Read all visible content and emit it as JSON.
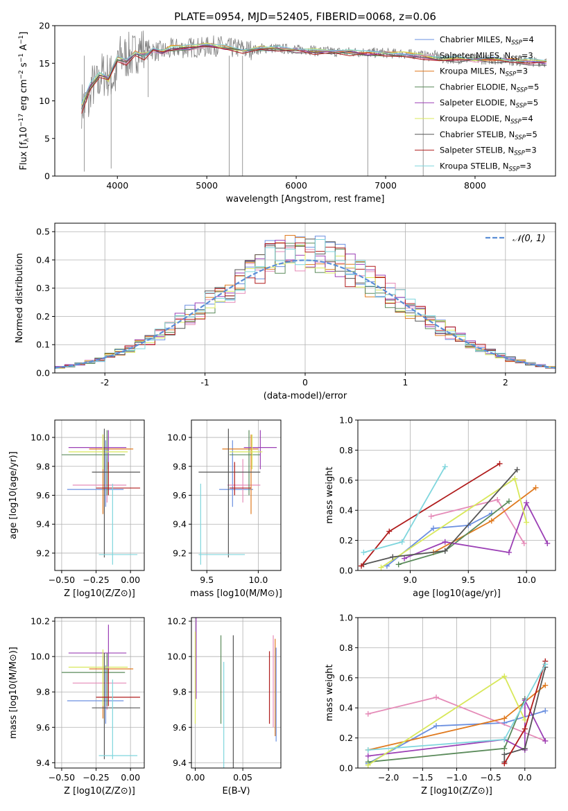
{
  "title": "PLATE=0954, MJD=52405, FIBERID=0068, z=0.06",
  "colors": {
    "Chabrier MILES": "#6a8fe0",
    "Salpeter MILES": "#e58bb8",
    "Kroupa MILES": "#e07a1f",
    "Chabrier ELODIE": "#5a8a5a",
    "Salpeter ELODIE": "#9b3fb5",
    "Kroupa ELODIE": "#d8e85a",
    "Chabrier STELIB": "#555555",
    "Salpeter STELIB": "#b01c1c",
    "Kroupa STELIB": "#7fd6dd",
    "data": "#808080",
    "gaussian": "#5b8ed6"
  },
  "chart_data": [
    {
      "id": "spectrum",
      "type": "line",
      "title": "PLATE=0954, MJD=52405, FIBERID=0068, z=0.06",
      "xlabel": "wavelength [Angstrom, rest frame]",
      "ylabel_parts": [
        "Flux [f",
        "λ",
        "10",
        "−17",
        " erg cm",
        "−2",
        " s",
        "−1",
        " A",
        "−1",
        "]"
      ],
      "xlim": [
        3300,
        8900
      ],
      "ylim": [
        0,
        20
      ],
      "xticks": [
        4000,
        5000,
        6000,
        7000,
        8000
      ],
      "yticks": [
        0,
        5,
        10,
        15,
        20
      ],
      "grid": false,
      "legend_position": "right",
      "x": [
        3600,
        3700,
        3800,
        3900,
        4000,
        4100,
        4200,
        4300,
        4400,
        4500,
        4600,
        4800,
        5000,
        5200,
        5400,
        5600,
        5800,
        6000,
        6200,
        6400,
        6600,
        6800,
        7000,
        7200,
        7400,
        7600,
        7800,
        8000,
        8200,
        8400,
        8600,
        8800
      ],
      "series": [
        {
          "label": "Chabrier MILES, N",
          "sub": "SSP",
          "n": "=4",
          "values": [
            9.5,
            12.0,
            13.5,
            13.0,
            15.8,
            15.3,
            16.5,
            16.0,
            16.8,
            16.6,
            17.0,
            17.1,
            17.3,
            17.0,
            16.8,
            17.0,
            16.9,
            16.8,
            16.6,
            16.5,
            16.5,
            16.4,
            16.3,
            16.2,
            16.0,
            15.6,
            15.6,
            15.5,
            15.5,
            15.3,
            15.2,
            15.2
          ]
        },
        {
          "label": "Salpeter MILES, N",
          "sub": "SSP",
          "n": "=3",
          "values": [
            9.4,
            11.8,
            13.4,
            12.9,
            15.7,
            15.2,
            16.4,
            15.9,
            16.7,
            16.5,
            16.9,
            17.0,
            17.2,
            16.9,
            16.7,
            16.9,
            16.8,
            16.7,
            16.5,
            16.4,
            16.4,
            16.3,
            16.2,
            16.1,
            15.9,
            15.5,
            15.5,
            15.4,
            15.4,
            15.2,
            15.1,
            15.1
          ]
        },
        {
          "label": "Kroupa MILES, N",
          "sub": "SSP",
          "n": "=3",
          "values": [
            9.6,
            12.1,
            13.6,
            13.1,
            15.9,
            15.4,
            16.6,
            16.1,
            16.9,
            16.7,
            17.1,
            17.2,
            17.4,
            17.1,
            16.9,
            17.1,
            17.0,
            16.9,
            16.7,
            16.6,
            16.6,
            16.5,
            16.4,
            16.3,
            16.1,
            15.7,
            15.7,
            15.6,
            15.6,
            15.4,
            15.3,
            15.3
          ]
        },
        {
          "label": "Chabrier ELODIE, N",
          "sub": "SSP",
          "n": "=5",
          "values": [
            9.3,
            11.9,
            13.3,
            13.0,
            15.6,
            15.2,
            16.3,
            15.9,
            16.7,
            16.5,
            16.9,
            17.0,
            17.2,
            16.9,
            16.7,
            16.9,
            16.8,
            16.7,
            16.5,
            16.4,
            16.4,
            16.3,
            16.2,
            16.1,
            15.9,
            15.6,
            15.5,
            15.5,
            15.4,
            15.3,
            15.1,
            15.1
          ]
        },
        {
          "label": "Salpeter ELODIE, N",
          "sub": "SSP",
          "n": "=5",
          "values": [
            9.4,
            12.0,
            13.4,
            13.1,
            15.7,
            15.3,
            16.4,
            16.0,
            16.8,
            16.6,
            17.0,
            17.1,
            17.3,
            17.0,
            16.8,
            17.0,
            16.9,
            16.8,
            16.6,
            16.5,
            16.5,
            16.4,
            16.3,
            16.2,
            16.0,
            15.7,
            15.6,
            15.6,
            15.5,
            15.4,
            15.2,
            15.2
          ]
        },
        {
          "label": "Kroupa ELODIE, N",
          "sub": "SSP",
          "n": "=4",
          "values": [
            9.5,
            12.1,
            13.5,
            12.8,
            15.9,
            15.4,
            16.5,
            16.1,
            16.9,
            16.7,
            17.1,
            17.2,
            17.4,
            17.1,
            16.9,
            17.1,
            17.0,
            16.9,
            16.7,
            16.6,
            16.6,
            16.5,
            16.4,
            16.3,
            16.1,
            15.7,
            15.7,
            15.6,
            15.6,
            15.4,
            15.3,
            15.3
          ]
        },
        {
          "label": "Chabrier STELIB, N",
          "sub": "SSP",
          "n": "=5",
          "values": [
            9.2,
            11.7,
            13.2,
            12.8,
            15.5,
            15.1,
            16.2,
            15.8,
            16.6,
            16.4,
            16.8,
            16.9,
            17.1,
            16.8,
            16.6,
            16.8,
            16.7,
            16.6,
            16.4,
            16.3,
            16.3,
            16.2,
            16.1,
            16.0,
            15.8,
            15.5,
            15.4,
            15.4,
            15.3,
            15.2,
            15.0,
            15.0
          ]
        },
        {
          "label": "Salpeter STELIB, N",
          "sub": "SSP",
          "n": "=3",
          "values": [
            8.5,
            11.5,
            13.0,
            12.6,
            15.4,
            15.0,
            16.1,
            15.7,
            16.5,
            16.3,
            16.7,
            16.8,
            17.0,
            16.7,
            16.5,
            16.7,
            16.6,
            16.5,
            16.3,
            16.2,
            16.2,
            16.1,
            16.0,
            15.9,
            15.8,
            15.5,
            15.4,
            15.4,
            15.3,
            15.2,
            15.0,
            15.0
          ]
        },
        {
          "label": "Kroupa STELIB, N",
          "sub": "SSP",
          "n": "=3",
          "values": [
            9.6,
            12.2,
            13.7,
            13.2,
            16.0,
            15.5,
            16.6,
            16.2,
            17.0,
            16.8,
            17.2,
            17.3,
            17.5,
            17.2,
            17.0,
            17.2,
            17.1,
            17.0,
            16.8,
            16.7,
            16.7,
            16.6,
            16.5,
            16.4,
            16.2,
            15.8,
            15.8,
            15.7,
            15.7,
            15.5,
            15.4,
            15.4
          ]
        }
      ],
      "observed": [
        10.5,
        9.0,
        14.0,
        12.0,
        16.5,
        13.5,
        17.0,
        15.0,
        17.2,
        16.0,
        17.5,
        16.8,
        17.8,
        16.2,
        17.3,
        16.5,
        17.5,
        16.3,
        17.0,
        16.0,
        17.1,
        16.2,
        16.8,
        15.8,
        16.4,
        15.2,
        16.0,
        15.0,
        15.9,
        15.0,
        15.6,
        15.0
      ]
    },
    {
      "id": "residuals",
      "type": "histogram",
      "xlabel": "(data-model)/error",
      "ylabel": "Normed distribution",
      "xlim": [
        -2.5,
        2.5
      ],
      "ylim": [
        0,
        0.53
      ],
      "xticks": [
        -2,
        -1,
        0,
        1,
        2
      ],
      "yticks": [
        0.0,
        0.1,
        0.2,
        0.3,
        0.4,
        0.5
      ],
      "grid": true,
      "legend": {
        "text": "𝒩(0, 1)",
        "position": "top-right"
      },
      "bin_width": 0.1,
      "bin_start": -2.5
    },
    {
      "id": "z-age",
      "type": "errorbar",
      "xlabel": "Z [log10(Z/Z⊙)]",
      "ylabel": "age  [log10(age/yr)]",
      "xlim": [
        -0.55,
        0.1
      ],
      "ylim": [
        9.08,
        10.12
      ],
      "xticks": [
        -0.5,
        -0.25,
        0.0
      ],
      "yticks": [
        9.2,
        9.4,
        9.6,
        9.8,
        10.0
      ],
      "grid": true
    },
    {
      "id": "mass-age",
      "type": "errorbar",
      "xlabel": "mass [log10(M/M⊙)]",
      "ylabel": "",
      "xlim": [
        9.35,
        10.22
      ],
      "ylim": [
        9.08,
        10.12
      ],
      "xticks": [
        9.5,
        10.0
      ],
      "yticks": [
        9.2,
        9.4,
        9.6,
        9.8,
        10.0
      ],
      "grid": true
    },
    {
      "id": "age-weight",
      "type": "line",
      "xlabel": "age  [log10(age/yr)]",
      "ylabel": "mass weight",
      "xlim": [
        8.55,
        10.25
      ],
      "ylim": [
        0,
        1
      ],
      "xticks": [
        9.0,
        9.5,
        10.0
      ],
      "yticks": [
        0.0,
        0.2,
        0.4,
        0.6,
        0.8,
        1.0
      ],
      "grid": true
    },
    {
      "id": "z-mass",
      "type": "errorbar",
      "xlabel": "Z [log10(Z/Z⊙)]",
      "ylabel": "mass [log10(M/M⊙)]",
      "xlim": [
        -0.55,
        0.1
      ],
      "ylim": [
        9.37,
        10.22
      ],
      "xticks": [
        -0.5,
        -0.25,
        0.0
      ],
      "yticks": [
        9.4,
        9.6,
        9.8,
        10.0,
        10.2
      ],
      "grid": true
    },
    {
      "id": "ebv-mass",
      "type": "errorbar",
      "xlabel": "E(B-V)",
      "ylabel": "",
      "xlim": [
        -0.004,
        0.09
      ],
      "ylim": [
        9.37,
        10.22
      ],
      "xticks": [
        0.0,
        0.05
      ],
      "yticks": [
        9.4,
        9.6,
        9.8,
        10.0,
        10.2
      ],
      "grid": true
    },
    {
      "id": "z-weight",
      "type": "line",
      "xlabel": "Z [log10(Z/Z⊙)]",
      "ylabel": "mass weight",
      "xlim": [
        -2.45,
        0.45
      ],
      "ylim": [
        0,
        1
      ],
      "xticks": [
        -2.0,
        -1.5,
        -1.0,
        -0.5,
        0.0
      ],
      "yticks": [
        0.0,
        0.2,
        0.4,
        0.6,
        0.8,
        1.0
      ],
      "grid": true
    }
  ],
  "fits": [
    {
      "model": "Chabrier MILES",
      "Z": -0.18,
      "Zlo": -0.46,
      "Zhi": -0.05,
      "age": 9.64,
      "ageLo": 9.52,
      "ageHi": 9.98,
      "mass": 9.75,
      "massLo": 9.62,
      "massHi": 9.95,
      "ebv": 0.085,
      "ebvLo": 0.085,
      "ebvHi": 0.085,
      "sfh_age": [
        8.8,
        9.2,
        9.5,
        9.7
      ],
      "sfh_Z": [
        -2.3,
        -1.3,
        -0.3,
        0.3
      ],
      "sfh_w": [
        0.03,
        0.28,
        0.3,
        0.38
      ]
    },
    {
      "model": "Salpeter MILES",
      "Z": -0.17,
      "Zlo": -0.42,
      "Zhi": -0.03,
      "age": 9.67,
      "ageLo": 9.55,
      "ageHi": 9.85,
      "mass": 9.85,
      "massLo": 9.7,
      "massHi": 10.02,
      "ebv": 0.082,
      "ebvLo": 0.082,
      "ebvHi": 0.082,
      "sfh_age": [
        9.18,
        9.75,
        9.98
      ],
      "sfh_Z": [
        -2.3,
        -1.3,
        0.3
      ],
      "sfh_w": [
        0.36,
        0.47,
        0.18
      ]
    },
    {
      "model": "Kroupa MILES",
      "Z": -0.2,
      "Zlo": -0.3,
      "Zhi": 0.02,
      "age": 9.92,
      "ageLo": 9.47,
      "ageHi": 10.02,
      "mass": 9.93,
      "massLo": 9.65,
      "massHi": 10.0,
      "ebv": 0.084,
      "ebvLo": 0.084,
      "ebvHi": 0.084,
      "sfh_age": [
        9.2,
        9.7,
        10.08
      ],
      "sfh_Z": [
        -2.3,
        -0.3,
        0.3
      ],
      "sfh_w": [
        0.12,
        0.33,
        0.55
      ]
    },
    {
      "model": "Chabrier ELODIE",
      "Z": -0.17,
      "Zlo": -0.5,
      "Zhi": -0.04,
      "age": 9.88,
      "ageLo": 9.6,
      "ageHi": 10.05,
      "mass": 9.91,
      "massLo": 9.72,
      "massHi": 10.02,
      "ebv": 0.027,
      "ebvLo": 0.027,
      "ebvHi": 0.027,
      "sfh_age": [
        8.9,
        9.3,
        9.85
      ],
      "sfh_Z": [
        -2.3,
        -0.3,
        0.0
      ],
      "sfh_w": [
        0.04,
        0.13,
        0.46
      ]
    },
    {
      "model": "Salpeter ELODIE",
      "Z": -0.16,
      "Zlo": -0.45,
      "Zhi": -0.03,
      "age": 9.93,
      "ageLo": 9.78,
      "ageHi": 10.05,
      "mass": 10.02,
      "massLo": 9.86,
      "massHi": 10.18,
      "ebv": 0.001,
      "ebvLo": 0.001,
      "ebvHi": 0.001,
      "sfh_age": [
        8.95,
        9.3,
        9.85,
        10.0,
        10.18
      ],
      "sfh_Z": [
        -2.3,
        -0.3,
        0.0,
        0.0,
        0.3
      ],
      "sfh_w": [
        0.08,
        0.19,
        0.12,
        0.45,
        0.18
      ]
    },
    {
      "model": "Kroupa ELODIE",
      "Z": -0.2,
      "Zlo": -0.45,
      "Zhi": -0.02,
      "age": 9.9,
      "ageLo": 9.78,
      "ageHi": 10.02,
      "mass": 9.94,
      "massLo": 9.72,
      "massHi": 10.04,
      "ebv": 0.0,
      "ebvLo": 0.0,
      "ebvHi": 0.0,
      "sfh_age": [
        8.75,
        9.9,
        10.0
      ],
      "sfh_Z": [
        -2.3,
        -0.3,
        0.0
      ],
      "sfh_w": [
        0.02,
        0.61,
        0.32
      ]
    },
    {
      "model": "Chabrier STELIB",
      "Z": -0.19,
      "Zlo": -0.28,
      "Zhi": 0.07,
      "age": 9.76,
      "ageLo": 9.17,
      "ageHi": 10.06,
      "mass": 9.71,
      "massLo": 9.42,
      "massHi": 10.02,
      "ebv": 0.04,
      "ebvLo": 0.04,
      "ebvHi": 0.04,
      "sfh_age": [
        8.6,
        8.85,
        9.3,
        9.92
      ],
      "sfh_Z": [
        -0.3,
        -0.3,
        0.0,
        0.3
      ],
      "sfh_w": [
        0.04,
        0.09,
        0.13,
        0.67
      ]
    },
    {
      "model": "Salpeter STELIB",
      "Z": -0.16,
      "Zlo": -0.25,
      "Zhi": 0.07,
      "age": 9.65,
      "ageLo": 9.6,
      "ageHi": 9.83,
      "mass": 9.77,
      "massLo": 9.72,
      "massHi": 9.93,
      "ebv": 0.078,
      "ebvLo": 0.078,
      "ebvHi": 0.078,
      "sfh_age": [
        8.58,
        8.82,
        9.77
      ],
      "sfh_Z": [
        -0.3,
        0.0,
        0.3
      ],
      "sfh_w": [
        0.03,
        0.26,
        0.71
      ]
    },
    {
      "model": "Kroupa STELIB",
      "Z": -0.13,
      "Zlo": -0.23,
      "Zhi": 0.05,
      "age": 9.19,
      "ageLo": 9.12,
      "ageHi": 9.68,
      "mass": 9.44,
      "massLo": 9.42,
      "massHi": 9.87,
      "ebv": 0.03,
      "ebvLo": 0.03,
      "ebvHi": 0.03,
      "sfh_age": [
        8.6,
        8.93,
        9.3
      ],
      "sfh_Z": [
        -2.3,
        -0.3,
        0.3
      ],
      "sfh_w": [
        0.12,
        0.19,
        0.69
      ]
    }
  ]
}
